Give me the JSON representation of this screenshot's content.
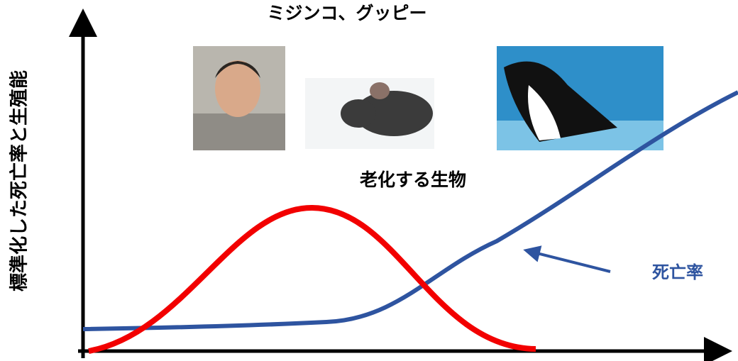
{
  "heading": "ミジンコ、グッピー",
  "center_label": "老化する生物",
  "curve_label": "死亡率",
  "y_axis_label": "標準化した死亡率と生殖能"
}
